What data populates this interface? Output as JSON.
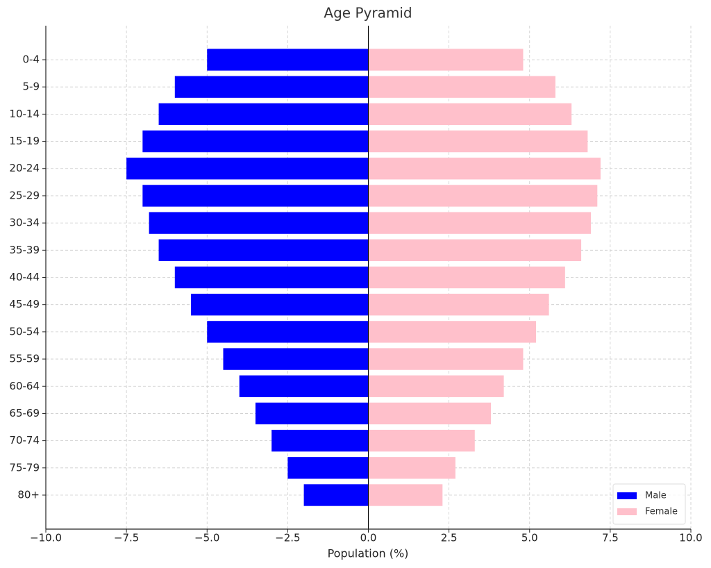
{
  "chart_data": {
    "type": "bar",
    "orientation": "horizontal",
    "title": "Age Pyramid",
    "x_label": "Population (%)",
    "categories": [
      "0-4",
      "5-9",
      "10-14",
      "15-19",
      "20-24",
      "25-29",
      "30-34",
      "35-39",
      "40-44",
      "45-49",
      "50-54",
      "55-59",
      "60-64",
      "65-69",
      "70-74",
      "75-79",
      "80+"
    ],
    "series": [
      {
        "name": "Male",
        "color": "#0000ff",
        "values": [
          -5.0,
          -6.0,
          -6.5,
          -7.0,
          -7.5,
          -7.0,
          -6.8,
          -6.5,
          -6.0,
          -5.5,
          -5.0,
          -4.5,
          -4.0,
          -3.5,
          -3.0,
          -2.5,
          -2.0
        ]
      },
      {
        "name": "Female",
        "color": "#ffc0cb",
        "values": [
          4.8,
          5.8,
          6.3,
          6.8,
          7.2,
          7.1,
          6.9,
          6.6,
          6.1,
          5.6,
          5.2,
          4.8,
          4.2,
          3.8,
          3.3,
          2.7,
          2.3
        ]
      }
    ],
    "xlim": [
      -10,
      10
    ],
    "xticks": [
      {
        "value": -10,
        "label": "−10.0"
      },
      {
        "value": -7.5,
        "label": "−7.5"
      },
      {
        "value": -5,
        "label": "−5.0"
      },
      {
        "value": -2.5,
        "label": "−2.5"
      },
      {
        "value": 0,
        "label": "0.0"
      },
      2.5,
      {
        "value": 5,
        "label": "5.0"
      },
      7.5,
      {
        "value": 10,
        "label": "10.0"
      }
    ],
    "grid": true,
    "legend_position": "lower right"
  }
}
